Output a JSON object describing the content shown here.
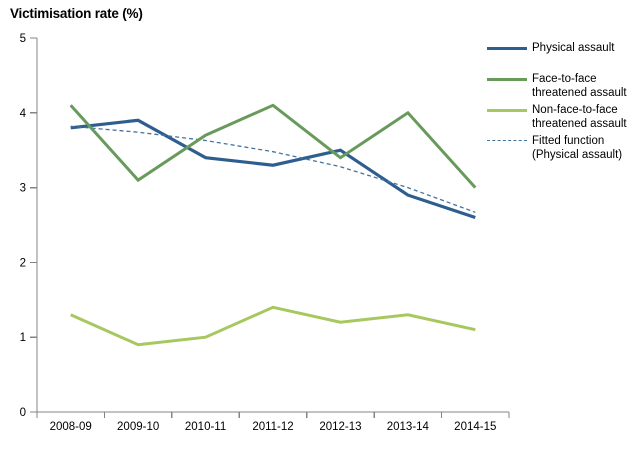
{
  "chart_data": {
    "type": "line",
    "title": "Victimisation rate (%)",
    "categories": [
      "2008-09",
      "2009-10",
      "2010-11",
      "2011-12",
      "2012-13",
      "2013-14",
      "2014-15"
    ],
    "series": [
      {
        "name": "Physical assault",
        "color": "#2E5E90",
        "stroke_width": 3.2,
        "dash": "",
        "values": [
          3.8,
          3.9,
          3.4,
          3.3,
          3.5,
          2.9,
          2.6
        ]
      },
      {
        "name": "Face-to-face threatened assault",
        "color": "#689A5B",
        "stroke_width": 3,
        "dash": "",
        "values": [
          4.1,
          3.1,
          3.7,
          4.1,
          3.4,
          4.0,
          3.0
        ]
      },
      {
        "name": "Non-face-to-face threatened assault",
        "color": "#A6C85F",
        "stroke_width": 3,
        "dash": "",
        "values": [
          1.3,
          0.9,
          1.0,
          1.4,
          1.2,
          1.3,
          1.1
        ]
      },
      {
        "name": "Fitted function (Physical assault)",
        "color": "#4472A0",
        "stroke_width": 1.3,
        "dash": "4 3",
        "values": [
          3.82,
          3.74,
          3.63,
          3.48,
          3.28,
          3.0,
          2.67
        ]
      }
    ],
    "xlabel": "",
    "ylabel": "Victimisation rate (%)",
    "ylim": [
      0,
      5
    ],
    "yticks": [
      0,
      1,
      2,
      3,
      4,
      5
    ],
    "grid": false,
    "legend_position": "right",
    "axis_color": "#848484",
    "text_color": "#000000"
  }
}
